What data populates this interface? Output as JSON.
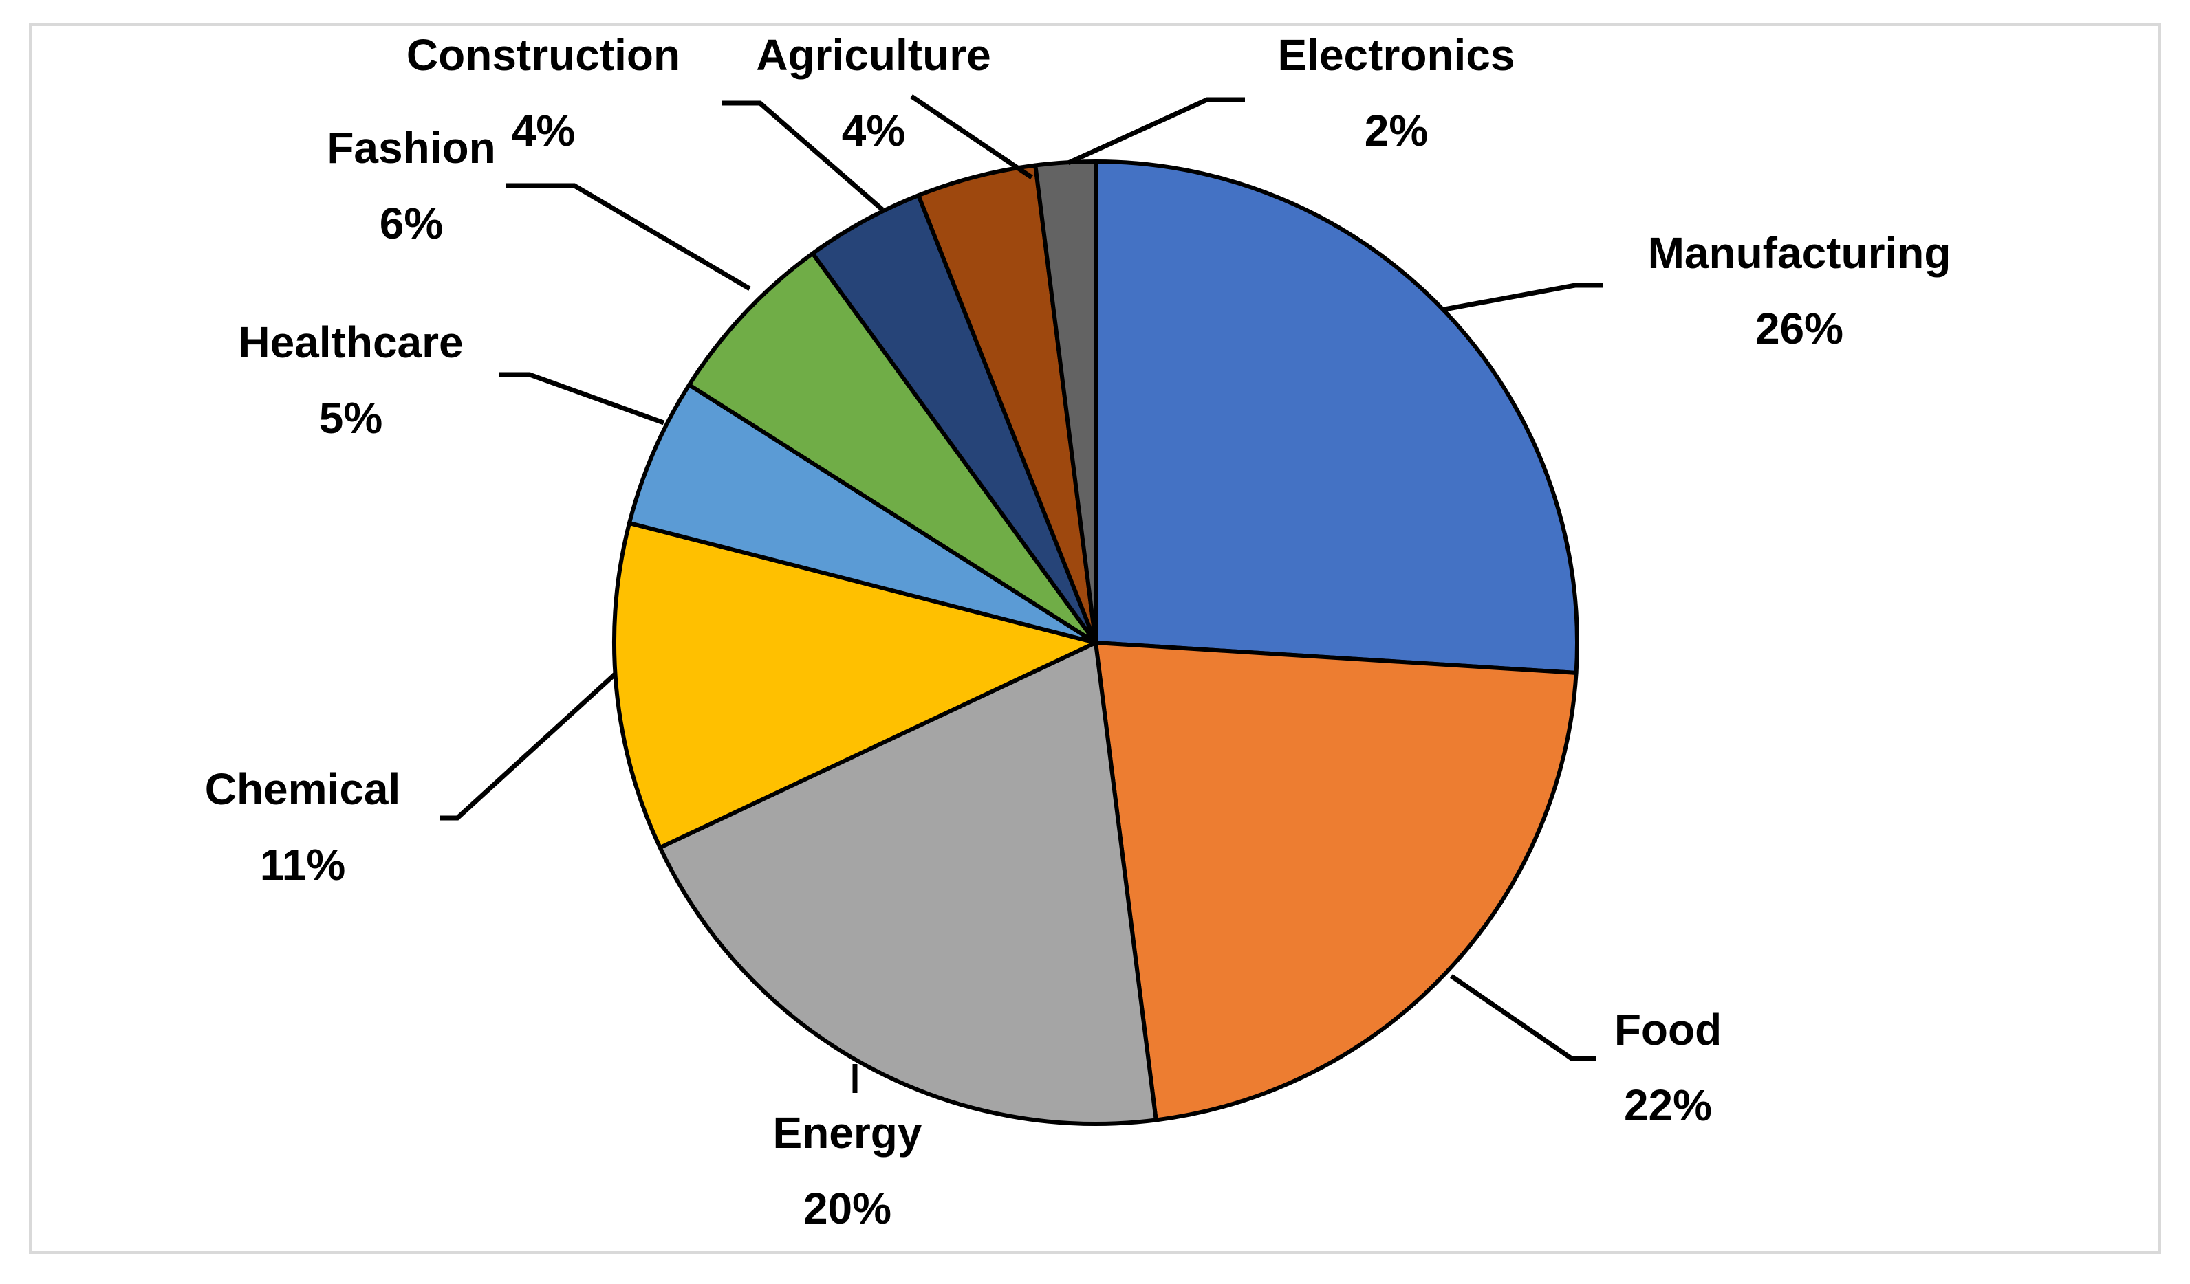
{
  "chart_data": {
    "type": "pie",
    "title": "",
    "legend": "none",
    "slices": [
      {
        "label": "Manufacturing",
        "value": 26,
        "display": "26%",
        "color": "#4472C4"
      },
      {
        "label": "Food",
        "value": 22,
        "display": "22%",
        "color": "#ED7D31"
      },
      {
        "label": "Energy",
        "value": 20,
        "display": "20%",
        "color": "#A5A5A5"
      },
      {
        "label": "Chemical",
        "value": 11,
        "display": "11%",
        "color": "#FFC000"
      },
      {
        "label": "Healthcare",
        "value": 5,
        "display": "5%",
        "color": "#5B9BD5"
      },
      {
        "label": "Fashion",
        "value": 6,
        "display": "6%",
        "color": "#70AD47"
      },
      {
        "label": "Construction",
        "value": 4,
        "display": "4%",
        "color": "#264478"
      },
      {
        "label": "Agriculture",
        "value": 4,
        "display": "4%",
        "color": "#9E480E"
      },
      {
        "label": "Electronics",
        "value": 2,
        "display": "2%",
        "color": "#636363"
      }
    ]
  }
}
